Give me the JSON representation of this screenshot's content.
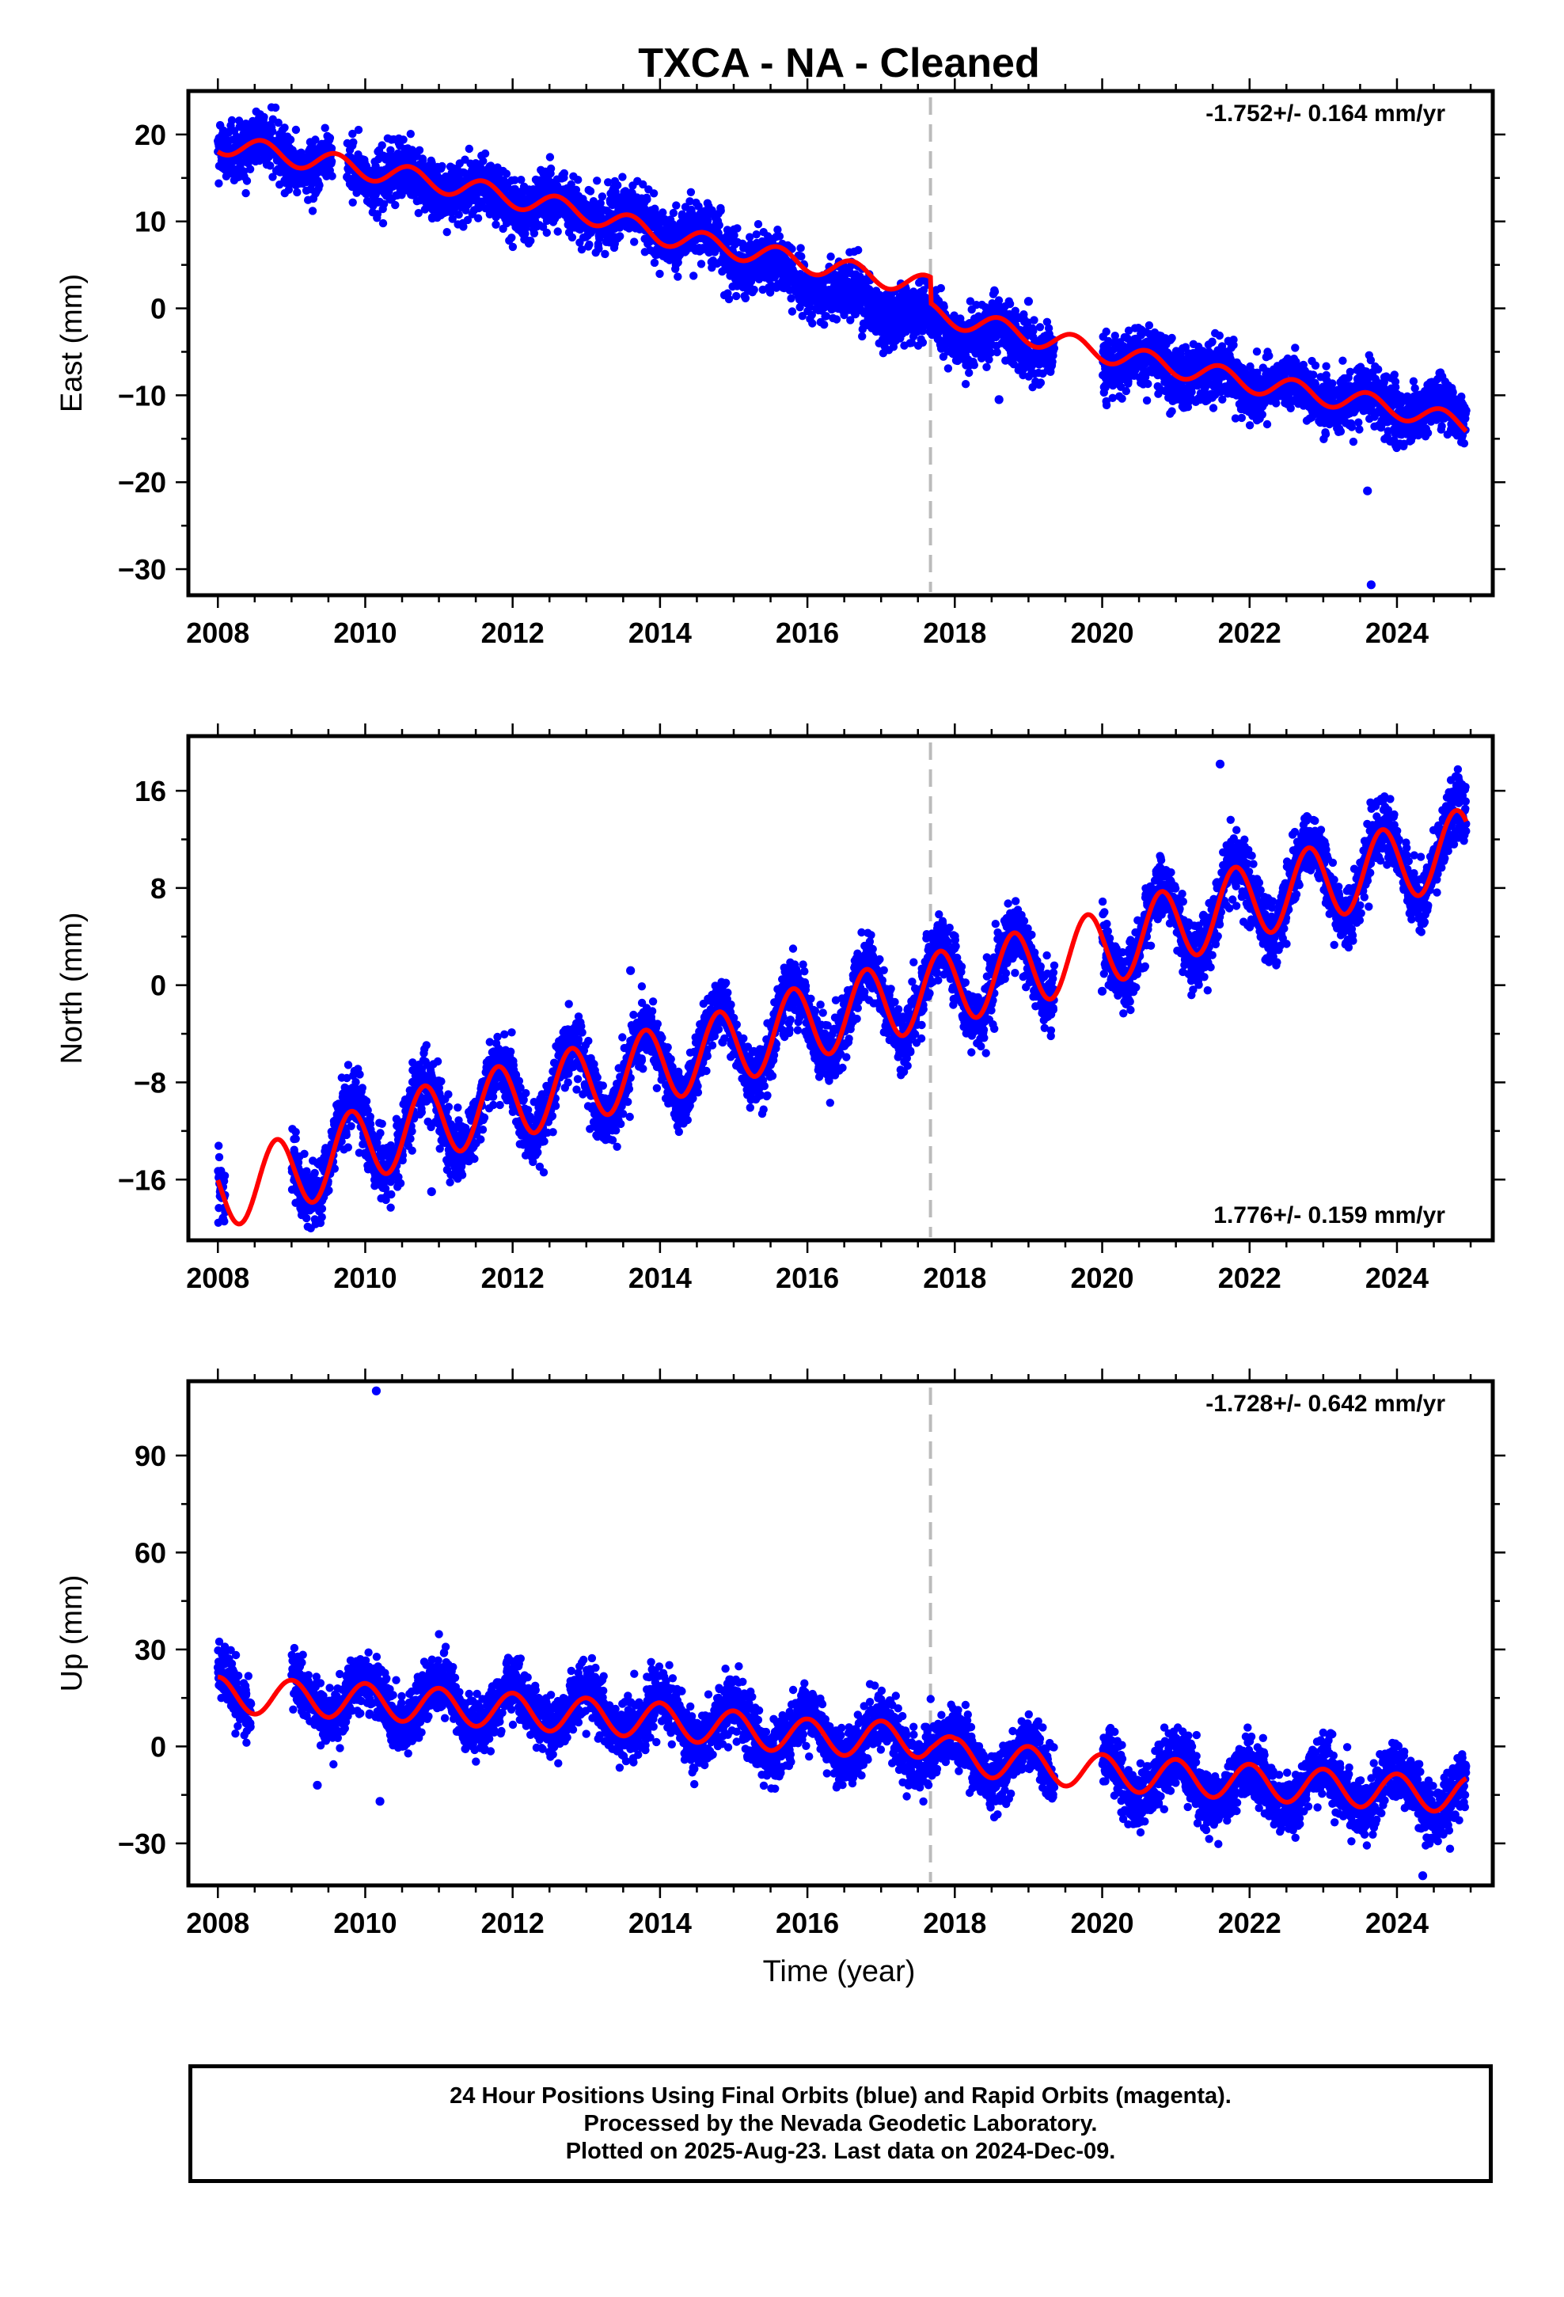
{
  "figure": {
    "title": "TXCA  - NA - Cleaned",
    "xlabel": "Time (year)",
    "caption_lines": [
      "24 Hour Positions Using Final Orbits (blue) and Rapid Orbits (magenta).",
      "Processed by the Nevada Geodetic Laboratory.",
      "Plotted on 2025-Aug-23. Last data on 2024-Dec-09."
    ],
    "colors": {
      "data": "#0000ff",
      "model": "#ff0000",
      "event_line": "#bbbbbb",
      "frame": "#000000"
    },
    "event_year": 2017.67
  },
  "chart_data": [
    {
      "type": "scatter",
      "component": "East",
      "ylabel": "East (mm)",
      "rate_text": "-1.752+/- 0.164 mm/yr",
      "rate_position": "top-right",
      "xlim": [
        2007.6,
        2025.3
      ],
      "ylim": [
        -33,
        25
      ],
      "xticks": [
        2008,
        2010,
        2012,
        2014,
        2016,
        2018,
        2020,
        2022,
        2024
      ],
      "yticks": [
        -30,
        -20,
        -10,
        0,
        10,
        20
      ],
      "x_range": [
        2008.0,
        2024.94
      ],
      "gaps": [
        [
          2009.55,
          2009.75
        ],
        [
          2019.35,
          2020.0
        ]
      ],
      "trend": [
        [
          2008.0,
          19
        ],
        [
          2009.0,
          17.5
        ],
        [
          2011.0,
          14
        ],
        [
          2012.0,
          12.5
        ],
        [
          2013.0,
          11
        ],
        [
          2014.0,
          9.5
        ],
        [
          2015.0,
          6.5
        ],
        [
          2016.0,
          3
        ],
        [
          2017.0,
          0
        ],
        [
          2017.67,
          -1.5
        ],
        [
          2018.0,
          -2.5
        ],
        [
          2019.0,
          -4
        ],
        [
          2020.0,
          -5.5
        ],
        [
          2021.0,
          -7
        ],
        [
          2022.0,
          -8.5
        ],
        [
          2023.0,
          -10
        ],
        [
          2024.0,
          -11.5
        ],
        [
          2024.94,
          -12
        ]
      ],
      "seasonal_amp": 1.2,
      "scatter_sd": 1.6,
      "model_trend": [
        [
          2008.0,
          19
        ],
        [
          2009.0,
          17.5
        ],
        [
          2011.0,
          14.5
        ],
        [
          2013.0,
          11
        ],
        [
          2014.0,
          8.5
        ],
        [
          2017.67,
          2.5
        ],
        [
          2017.68,
          -0.5
        ],
        [
          2020.0,
          -5
        ],
        [
          2022.0,
          -8.5
        ],
        [
          2024.0,
          -11.5
        ],
        [
          2024.94,
          -13.5
        ]
      ],
      "model_amp": 1.2,
      "outliers": [
        [
          2018.6,
          -10.5
        ],
        [
          2019.0,
          0.8
        ],
        [
          2023.6,
          -21
        ],
        [
          2023.65,
          -31.8
        ]
      ]
    },
    {
      "type": "scatter",
      "component": "North",
      "ylabel": "North (mm)",
      "rate_text": "1.776+/- 0.159 mm/yr",
      "rate_position": "bottom-right",
      "xlim": [
        2007.6,
        2025.3
      ],
      "ylim": [
        -21,
        20.5
      ],
      "xticks": [
        2008,
        2010,
        2012,
        2014,
        2016,
        2018,
        2020,
        2022,
        2024
      ],
      "yticks": [
        -16,
        -8,
        0,
        8,
        16
      ],
      "ytick_labels": [
        "−16",
        "−8",
        "0",
        "8",
        "16"
      ],
      "x_range": [
        2008.0,
        2024.94
      ],
      "gaps": [
        [
          2008.1,
          2009.0
        ],
        [
          2019.35,
          2020.0
        ]
      ],
      "trend": [
        [
          2008.0,
          -17
        ],
        [
          2009.0,
          -15
        ],
        [
          2010.0,
          -12.5
        ],
        [
          2011.0,
          -11
        ],
        [
          2012.0,
          -9.5
        ],
        [
          2013.0,
          -8
        ],
        [
          2014.0,
          -6.5
        ],
        [
          2015.0,
          -5
        ],
        [
          2016.0,
          -3
        ],
        [
          2017.0,
          -1.5
        ],
        [
          2018.0,
          0
        ],
        [
          2019.0,
          1.5
        ],
        [
          2020.0,
          3
        ],
        [
          2021.0,
          5
        ],
        [
          2022.0,
          7
        ],
        [
          2023.0,
          8.5
        ],
        [
          2024.0,
          10
        ],
        [
          2024.94,
          11.5
        ]
      ],
      "seasonal_amp": 3.3,
      "scatter_sd": 1.3,
      "model_trend": [
        [
          2008.0,
          -17
        ],
        [
          2009.0,
          -15.5
        ],
        [
          2010.0,
          -13
        ],
        [
          2011.0,
          -11
        ],
        [
          2012.0,
          -9.5
        ],
        [
          2013.0,
          -8
        ],
        [
          2014.0,
          -6.5
        ],
        [
          2015.0,
          -5
        ],
        [
          2016.0,
          -3
        ],
        [
          2017.0,
          -1.5
        ],
        [
          2018.0,
          0
        ],
        [
          2019.0,
          1.5
        ],
        [
          2020.0,
          3
        ],
        [
          2021.0,
          5
        ],
        [
          2022.0,
          7
        ],
        [
          2023.0,
          8.5
        ],
        [
          2024.0,
          10
        ],
        [
          2024.94,
          11.5
        ]
      ],
      "model_amp": 3.1,
      "outliers": [
        [
          2020.0,
          -0.5
        ],
        [
          2021.6,
          18.2
        ],
        [
          2010.9,
          -17
        ],
        [
          2013.6,
          1.2
        ]
      ]
    },
    {
      "type": "scatter",
      "component": "Up",
      "ylabel": "Up (mm)",
      "rate_text": "-1.728+/- 0.642 mm/yr",
      "rate_position": "top-right",
      "xlim": [
        2007.6,
        2025.3
      ],
      "ylim": [
        -43,
        113
      ],
      "xticks": [
        2008,
        2010,
        2012,
        2014,
        2016,
        2018,
        2020,
        2022,
        2024
      ],
      "yticks": [
        -30,
        0,
        30,
        60,
        90
      ],
      "x_range": [
        2008.0,
        2024.94
      ],
      "gaps": [
        [
          2008.45,
          2009.0
        ],
        [
          2019.35,
          2020.0
        ]
      ],
      "trend": [
        [
          2008.0,
          16
        ],
        [
          2010.0,
          14
        ],
        [
          2012.0,
          12
        ],
        [
          2014.0,
          9
        ],
        [
          2016.0,
          3
        ],
        [
          2017.67,
          1
        ],
        [
          2018.0,
          -3
        ],
        [
          2020.0,
          -9
        ],
        [
          2022.0,
          -12
        ],
        [
          2024.0,
          -14
        ],
        [
          2024.94,
          -15
        ]
      ],
      "seasonal_amp": 6.5,
      "scatter_sd": 4.5,
      "model_trend": [
        [
          2008.0,
          16
        ],
        [
          2010.0,
          14
        ],
        [
          2012.0,
          11
        ],
        [
          2014.0,
          8
        ],
        [
          2016.0,
          3
        ],
        [
          2017.67,
          2
        ],
        [
          2018.0,
          -3
        ],
        [
          2020.0,
          -8
        ],
        [
          2022.0,
          -11
        ],
        [
          2024.0,
          -14
        ],
        [
          2024.94,
          -15
        ]
      ],
      "model_amp": 5.5,
      "outliers": [
        [
          2010.15,
          110
        ],
        [
          2010.2,
          -17
        ],
        [
          2009.35,
          -12
        ],
        [
          2024.35,
          -40
        ]
      ]
    }
  ]
}
